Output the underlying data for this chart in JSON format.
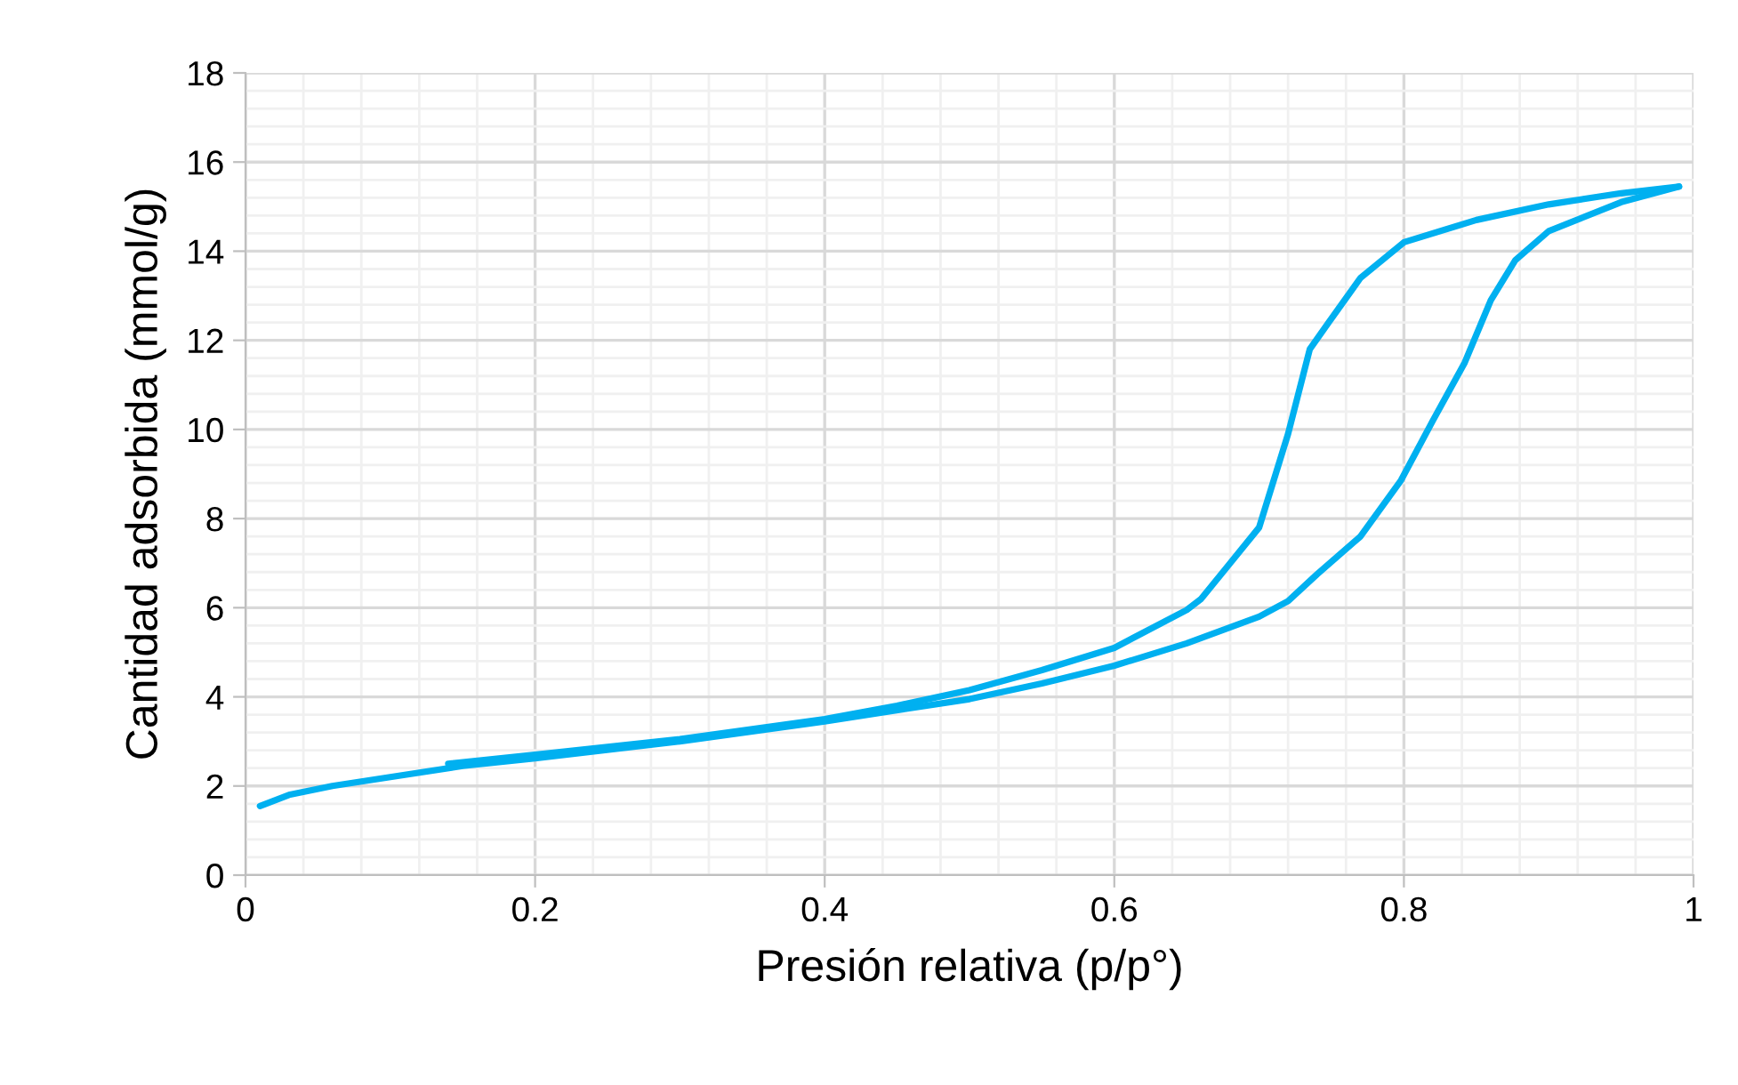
{
  "chart_data": {
    "type": "line",
    "xlabel": "Presión relativa (p/p°)",
    "ylabel": "Cantidad adsorbida (mmol/g)",
    "xlim": [
      0,
      1
    ],
    "ylim": [
      0,
      18
    ],
    "xticks": [
      0,
      0.2,
      0.4,
      0.6,
      0.8,
      1
    ],
    "yticks": [
      0,
      2,
      4,
      6,
      8,
      10,
      12,
      14,
      16,
      18
    ],
    "grid": true,
    "marker": "none",
    "line_style": "solid",
    "series": [
      {
        "color": "#00b0f0",
        "x": [
          0.01,
          0.03,
          0.06,
          0.1,
          0.15,
          0.2,
          0.3,
          0.4,
          0.5,
          0.55,
          0.6,
          0.65,
          0.7,
          0.72,
          0.74,
          0.77,
          0.798,
          0.82,
          0.842,
          0.86,
          0.877,
          0.9,
          0.95,
          0.99
        ],
        "values": [
          1.55,
          1.8,
          2.0,
          2.2,
          2.45,
          2.62,
          3.0,
          3.45,
          3.95,
          4.3,
          4.7,
          5.2,
          5.8,
          6.15,
          6.75,
          7.6,
          8.86,
          10.2,
          11.5,
          12.9,
          13.8,
          14.45,
          15.1,
          15.45
        ]
      },
      {
        "color": "#00b0f0",
        "x": [
          0.99,
          0.95,
          0.9,
          0.85,
          0.8,
          0.77,
          0.748,
          0.735,
          0.72,
          0.7,
          0.68,
          0.66,
          0.65,
          0.6,
          0.55,
          0.5,
          0.45,
          0.4,
          0.3,
          0.2,
          0.14
        ],
        "values": [
          15.45,
          15.3,
          15.05,
          14.7,
          14.2,
          13.4,
          12.4,
          11.8,
          9.9,
          7.8,
          7.0,
          6.2,
          5.95,
          5.1,
          4.6,
          4.15,
          3.8,
          3.5,
          3.05,
          2.7,
          2.5
        ]
      }
    ]
  }
}
